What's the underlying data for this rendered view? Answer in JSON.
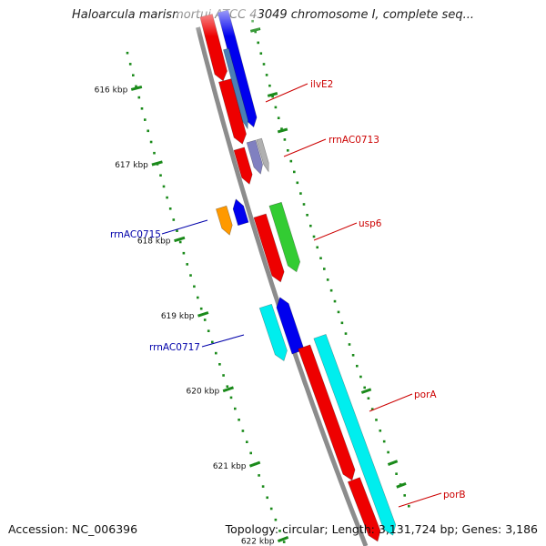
{
  "title": "Haloarcula marismortui ATCC 43049 chromosome I, complete seq...",
  "footer": {
    "accession": "Accession: NC_006396",
    "topology": "Topology: circular; Length: 3,131,724 bp; Genes: 3,186"
  },
  "ticks": [
    "616 kbp",
    "617 kbp",
    "618 kbp",
    "619 kbp",
    "620 kbp",
    "621 kbp",
    "622 kbp"
  ],
  "gene_labels": [
    "ilvE2",
    "rrnAC0713",
    "usp6",
    "rrnAC0715",
    "rrnAC0717",
    "porA",
    "porB"
  ],
  "colors": {
    "backbone": "#8c8c8c",
    "tick": "#1a8a1a",
    "label_forward": "#cc0000",
    "label_reverse": "#0000aa",
    "red": "#ee0000",
    "blue": "#0000ee",
    "cyan": "#00eeee",
    "green": "#33cc33",
    "orange": "#ff9900",
    "steel": "#4a7fb5",
    "lavender": "#8080c0",
    "gray": "#b0b0b0"
  }
}
